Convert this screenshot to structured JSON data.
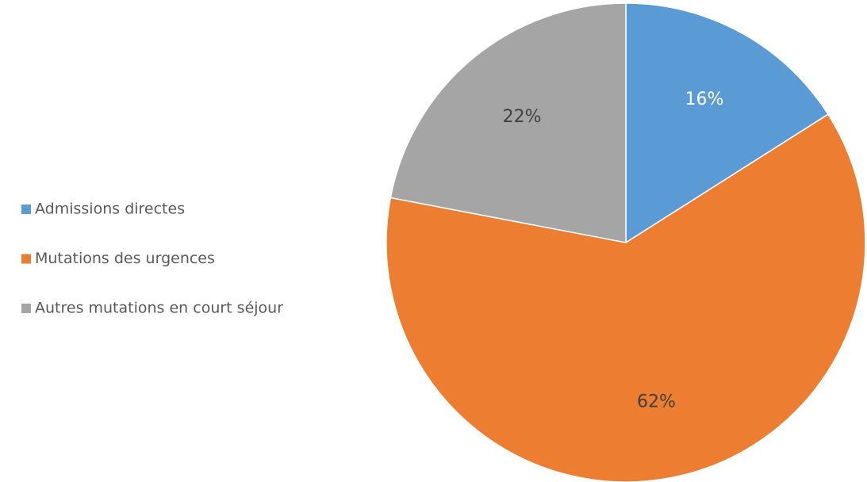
{
  "chart_data": {
    "type": "pie",
    "categories": [
      "Admissions directes",
      "Mutations des urgences",
      "Autres mutations en court séjour"
    ],
    "values": [
      16,
      62,
      22
    ],
    "value_labels": [
      "16%",
      "62%",
      "22%"
    ],
    "colors": [
      "#5b9bd5",
      "#ed7d31",
      "#a5a5a5"
    ],
    "label_colors": [
      "#ffffff",
      "#404040",
      "#404040"
    ],
    "legend": "left"
  }
}
